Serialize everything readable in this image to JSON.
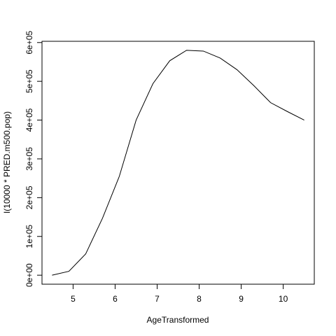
{
  "chart_data": {
    "type": "line",
    "xlabel": "AgeTransformed",
    "ylabel": "I(10000 * PRED.m500.pop)",
    "x": [
      4.5,
      4.9,
      5.3,
      5.7,
      6.1,
      6.5,
      6.9,
      7.3,
      7.7,
      8.1,
      8.5,
      8.9,
      9.3,
      9.7,
      10.1,
      10.5
    ],
    "series": [
      {
        "color": "#000000",
        "values": [
          0,
          10000,
          55000,
          147000,
          255000,
          400000,
          494000,
          553000,
          580000,
          578000,
          560000,
          530000,
          489000,
          445000,
          422000,
          400000
        ]
      }
    ],
    "xlim": [
      4.26,
      10.74
    ],
    "ylim": [
      -23200,
      603200
    ],
    "xticks": [
      5,
      6,
      7,
      8,
      9,
      10
    ],
    "yticks": [
      {
        "value": 0,
        "label": "0e+00"
      },
      {
        "value": 100000,
        "label": "1e+05"
      },
      {
        "value": 200000,
        "label": "2e+05"
      },
      {
        "value": 300000,
        "label": "3e+05"
      },
      {
        "value": 400000,
        "label": "4e+05"
      },
      {
        "value": 500000,
        "label": "5e+05"
      },
      {
        "value": 600000,
        "label": "6e+05"
      }
    ],
    "grid": false
  }
}
